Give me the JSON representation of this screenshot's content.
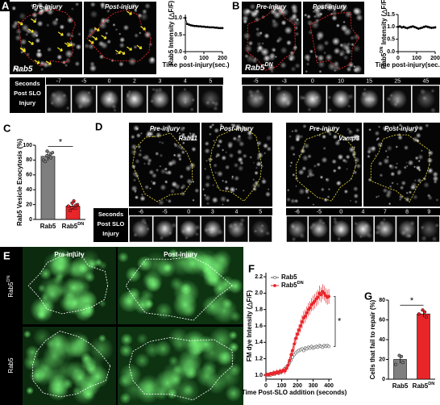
{
  "panels": {
    "A": {
      "letter": "A",
      "pre": "Pre-injury",
      "post": "Post-injury",
      "marker": "Rab5",
      "strip": {
        "row_label": [
          "Seconds",
          "Post SLO",
          "Injury"
        ],
        "times": [
          -7,
          -5,
          0,
          2,
          3,
          4,
          5
        ]
      }
    },
    "B": {
      "letter": "B",
      "pre": "Pre-injury",
      "post": "Post-injury",
      "marker": "Rab5",
      "marker_sup": "DN",
      "strip": {
        "times": [
          -5,
          -3,
          0,
          10,
          15,
          25,
          45
        ]
      }
    },
    "C": {
      "letter": "C"
    },
    "D": {
      "letter": "D",
      "row_label": [
        "Seconds",
        "Post SLO",
        "Injury"
      ],
      "groups": [
        {
          "pre": "Pre-injury",
          "post": "Post-injury",
          "marker": "Rab11",
          "times": [
            -6,
            -5,
            0,
            3,
            4,
            5
          ]
        },
        {
          "pre": "Pre-injury",
          "post": "Post-injury",
          "marker": "Vamp3",
          "times": [
            -6,
            -5,
            0,
            4,
            7,
            8,
            9
          ]
        }
      ]
    },
    "E": {
      "letter": "E",
      "pre": "Pre-injury",
      "post": "Post-injury",
      "rows": [
        {
          "label": "Rab5",
          "sup": "DN"
        },
        {
          "label": "Rab5"
        }
      ]
    },
    "F": {
      "letter": "F"
    },
    "G": {
      "letter": "G"
    }
  },
  "chart_data": [
    {
      "type": "line",
      "ylabel": "Rab5 Intensity (△F/F)",
      "xlabel": "Time post-injury(sec.)",
      "x": [
        0,
        10,
        20,
        30,
        40,
        50,
        60,
        70,
        80,
        90,
        100,
        110,
        120,
        130,
        140,
        150,
        160,
        170,
        180,
        190,
        200
      ],
      "series": [
        {
          "color": "#000000",
          "values": [
            1.0,
            0.82,
            0.8,
            0.78,
            0.77,
            0.76,
            0.76,
            0.75,
            0.75,
            0.74,
            0.74,
            0.73,
            0.73,
            0.72,
            0.72,
            0.72,
            0.71,
            0.71,
            0.7,
            0.7,
            0.7
          ]
        }
      ],
      "xlim": [
        0,
        200
      ],
      "ylim": [
        0,
        1.1
      ],
      "xticks": [
        0,
        100,
        200
      ],
      "yticks": [
        {
          "value": 0,
          "label": "0.0"
        },
        {
          "value": 0.5,
          "label": "0.5"
        },
        {
          "value": 1,
          "label": "1.0"
        }
      ]
    },
    {
      "type": "line",
      "ylabel": {
        "text": "Rab5",
        "sup": "DN",
        "rest": " Intensity (△F/F)"
      },
      "xlabel": "Time post-injury(sec.)",
      "x": [
        0,
        10,
        20,
        30,
        40,
        50,
        60,
        70,
        80,
        90,
        100,
        110,
        120,
        130,
        140,
        150,
        160,
        170,
        180,
        190,
        200
      ],
      "series": [
        {
          "color": "#000000",
          "values": [
            1.0,
            1.02,
            0.98,
            1.0,
            0.97,
            0.95,
            0.98,
            1.0,
            1.02,
            0.99,
            0.96,
            0.93,
            0.95,
            0.97,
            1.0,
            1.02,
            1.0,
            0.98,
            0.96,
            0.97,
            0.98
          ],
          "errors": [
            0.05,
            0.05,
            0.05,
            0.05,
            0.05,
            0.05,
            0.05,
            0.05,
            0.05,
            0.05,
            0.05,
            0.05,
            0.05,
            0.05,
            0.05,
            0.05,
            0.05,
            0.05,
            0.05,
            0.05,
            0.05
          ]
        }
      ],
      "xlim": [
        0,
        200
      ],
      "ylim": [
        0,
        1.5
      ],
      "xticks": [
        0,
        100,
        200
      ],
      "yticks": [
        {
          "value": 0,
          "label": "0.0"
        },
        {
          "value": 0.5,
          "label": "0.5"
        },
        {
          "value": 1,
          "label": "1.0"
        },
        {
          "value": 1.5,
          "label": "1.5"
        }
      ]
    },
    {
      "type": "bar",
      "ylabel": "Rab5 Vesicle Exocytosis (%)",
      "categories": [
        {
          "label": "Rab5"
        },
        {
          "label": "Rab5",
          "sup": "DN"
        }
      ],
      "values": [
        85,
        18
      ],
      "errors": [
        6,
        5
      ],
      "colors": [
        "#7f7f7f",
        "#e8262a"
      ],
      "points": [
        [
          92,
          88,
          80,
          85,
          78,
          90,
          86,
          83
        ],
        [
          22,
          15,
          18,
          25,
          12,
          20,
          16,
          19
        ]
      ],
      "ylim": [
        0,
        100
      ],
      "yticks": [
        0,
        20,
        40,
        60,
        80,
        100
      ],
      "significance": "*"
    },
    {
      "type": "line",
      "ylabel": "FM dye Intensity (△F/F)",
      "xlabel": "Time Post-SLO addition (seconds)",
      "x": [
        0,
        10,
        20,
        30,
        40,
        50,
        60,
        70,
        80,
        90,
        100,
        110,
        120,
        130,
        140,
        150,
        160,
        170,
        180,
        190,
        200,
        210,
        220,
        230,
        240,
        250,
        260,
        270,
        280,
        290,
        300,
        310,
        320,
        330,
        340,
        350,
        360,
        370,
        380,
        390,
        400
      ],
      "series": [
        {
          "name": "Rab5",
          "color": "#555555",
          "open": true,
          "values": [
            1.0,
            1.0,
            1.01,
            1.0,
            1.02,
            1.01,
            1.02,
            1.03,
            1.02,
            1.03,
            1.04,
            1.06,
            1.08,
            1.1,
            1.12,
            1.15,
            1.18,
            1.22,
            1.25,
            1.27,
            1.29,
            1.3,
            1.31,
            1.32,
            1.3,
            1.33,
            1.32,
            1.34,
            1.33,
            1.35,
            1.33,
            1.34,
            1.35,
            1.34,
            1.36,
            1.35,
            1.34,
            1.36,
            1.35,
            1.36,
            1.35
          ],
          "errors": [
            0.02,
            0.02,
            0.02,
            0.02,
            0.02,
            0.02,
            0.02,
            0.02,
            0.02,
            0.02,
            0.02,
            0.02,
            0.02,
            0.02,
            0.02,
            0.02,
            0.02,
            0.02,
            0.02,
            0.02,
            0.02,
            0.02,
            0.02,
            0.02,
            0.02,
            0.02,
            0.02,
            0.02,
            0.02,
            0.02,
            0.02,
            0.02,
            0.02,
            0.02,
            0.02,
            0.02,
            0.02,
            0.02,
            0.02,
            0.02,
            0.02
          ]
        },
        {
          "name": "Rab5",
          "name_sup": "DN",
          "color": "#e8262a",
          "values": [
            1.0,
            1.01,
            1.0,
            1.02,
            1.01,
            1.03,
            1.02,
            1.04,
            1.03,
            1.05,
            1.04,
            1.06,
            1.05,
            1.08,
            1.12,
            1.18,
            1.25,
            1.3,
            1.38,
            1.45,
            1.5,
            1.55,
            1.6,
            1.65,
            1.7,
            1.72,
            1.76,
            1.8,
            1.82,
            1.86,
            1.88,
            1.9,
            1.93,
            1.95,
            2.0,
            1.98,
            2.02,
            2.0,
            1.97,
            1.95,
            1.96
          ],
          "errors": [
            0.02,
            0.02,
            0.02,
            0.02,
            0.02,
            0.03,
            0.03,
            0.03,
            0.03,
            0.03,
            0.03,
            0.03,
            0.04,
            0.04,
            0.05,
            0.05,
            0.06,
            0.06,
            0.07,
            0.07,
            0.07,
            0.07,
            0.08,
            0.08,
            0.08,
            0.08,
            0.08,
            0.08,
            0.08,
            0.08,
            0.09,
            0.09,
            0.09,
            0.09,
            0.09,
            0.09,
            0.09,
            0.09,
            0.09,
            0.09,
            0.09
          ]
        }
      ],
      "xlim": [
        0,
        420
      ],
      "ylim": [
        0.95,
        2.25
      ],
      "xticks": [
        0,
        100,
        200,
        300,
        400
      ],
      "yticks": [
        {
          "value": 1,
          "label": "1.0"
        },
        {
          "value": 1.2,
          "label": "1.2"
        },
        {
          "value": 1.4,
          "label": "1.4"
        },
        {
          "value": 1.6,
          "label": "1.6"
        },
        {
          "value": 1.8,
          "label": "1.8"
        },
        {
          "value": 2,
          "label": "2.0"
        },
        {
          "value": 2.2,
          "label": "2.2"
        }
      ],
      "legend": "upper left",
      "significance": "*"
    },
    {
      "type": "bar",
      "ylabel": "Cells that fail to repair (%)",
      "categories": [
        {
          "label": "Rab5"
        },
        {
          "label": "Rab5",
          "sup": "DN"
        }
      ],
      "values": [
        20,
        66
      ],
      "errors": [
        4,
        3
      ],
      "colors": [
        "#7f7f7f",
        "#e8262a"
      ],
      "points": [
        [
          24,
          17,
          15,
          23
        ],
        [
          70,
          63,
          66,
          68
        ]
      ],
      "ylim": [
        0,
        80
      ],
      "yticks": [
        0,
        20,
        40,
        60,
        80
      ],
      "significance": "*"
    }
  ]
}
